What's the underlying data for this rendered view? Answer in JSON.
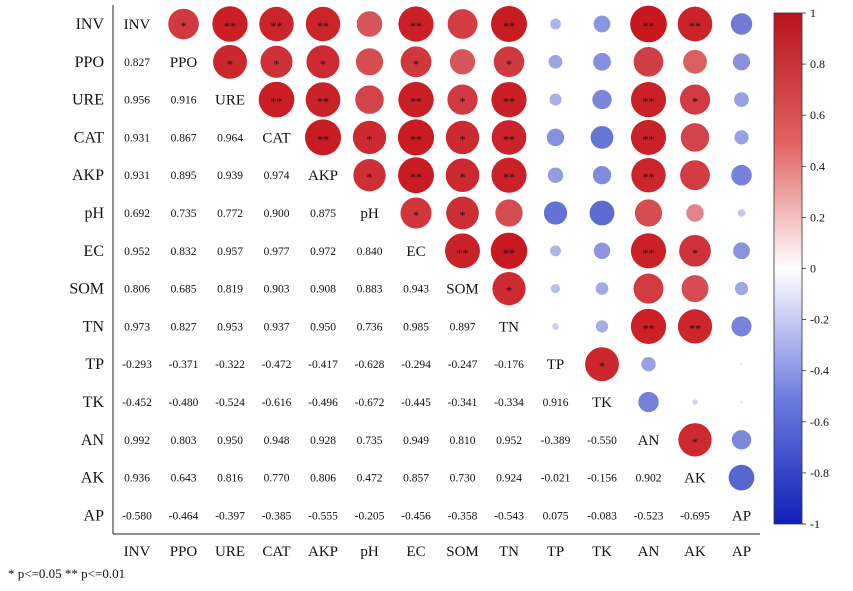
{
  "chart_data": {
    "type": "heatmap",
    "variables": [
      "INV",
      "PPO",
      "URE",
      "CAT",
      "AKP",
      "pH",
      "EC",
      "SOM",
      "TN",
      "TP",
      "TK",
      "AN",
      "AK",
      "AP"
    ],
    "lower_triangle_values": [
      [],
      [
        "0.827"
      ],
      [
        "0.956",
        "0.916"
      ],
      [
        "0.931",
        "0.867",
        "0.964"
      ],
      [
        "0.931",
        "0.895",
        "0.939",
        "0.974"
      ],
      [
        "0.692",
        "0.735",
        "0.772",
        "0.900",
        "0.875"
      ],
      [
        "0.952",
        "0.832",
        "0.957",
        "0.977",
        "0.972",
        "0.840"
      ],
      [
        "0.806",
        "0.685",
        "0.819",
        "0.903",
        "0.908",
        "0.883",
        "0.943"
      ],
      [
        "0.973",
        "0.827",
        "0.953",
        "0.937",
        "0.950",
        "0.736",
        "0.985",
        "0.897"
      ],
      [
        "-0.293",
        "-0.371",
        "-0.322",
        "-0.472",
        "-0.417",
        "-0.628",
        "-0.294",
        "-0.247",
        "-0.176"
      ],
      [
        "-0.452",
        "-0.480",
        "-0.524",
        "-0.616",
        "-0.496",
        "-0.672",
        "-0.445",
        "-0.341",
        "-0.334",
        "0.916"
      ],
      [
        "0.992",
        "0.803",
        "0.950",
        "0.948",
        "0.928",
        "0.735",
        "0.949",
        "0.810",
        "0.952",
        "-0.389",
        "-0.550"
      ],
      [
        "0.936",
        "0.643",
        "0.816",
        "0.770",
        "0.806",
        "0.472",
        "0.857",
        "0.730",
        "0.924",
        "-0.021",
        "-0.156",
        "0.902"
      ],
      [
        "-0.580",
        "-0.464",
        "-0.397",
        "-0.385",
        "-0.555",
        "-0.205",
        "-0.456",
        "-0.358",
        "-0.543",
        "0.075",
        "-0.083",
        "-0.523",
        "-0.695"
      ]
    ],
    "significance": [
      [
        "",
        "*",
        "**",
        "**",
        "**",
        "",
        "**",
        "",
        "**",
        "",
        "",
        "**",
        "**",
        ""
      ],
      [
        "",
        "",
        "*",
        "*",
        "*",
        "",
        "*",
        "",
        "*",
        "",
        "",
        "",
        "",
        ""
      ],
      [
        "",
        "",
        "",
        "**",
        "**",
        "",
        "**",
        "*",
        "**",
        "",
        "",
        "**",
        "*",
        ""
      ],
      [
        "",
        "",
        "",
        "",
        "**",
        "*",
        "**",
        "*",
        "**",
        "",
        "",
        "**",
        "",
        ""
      ],
      [
        "",
        "",
        "",
        "",
        "",
        "*",
        "**",
        "*",
        "**",
        "",
        "",
        "**",
        "",
        ""
      ],
      [
        "",
        "",
        "",
        "",
        "",
        "",
        "*",
        "*",
        "",
        "",
        "",
        "",
        "",
        ""
      ],
      [
        "",
        "",
        "",
        "",
        "",
        "",
        "",
        "**",
        "**",
        "",
        "",
        "**",
        "*",
        ""
      ],
      [
        "",
        "",
        "",
        "",
        "",
        "",
        "",
        "",
        "*",
        "",
        "",
        "",
        "",
        ""
      ],
      [
        "",
        "",
        "",
        "",
        "",
        "",
        "",
        "",
        "",
        "",
        "",
        "**",
        "**",
        ""
      ],
      [
        "",
        "",
        "",
        "",
        "",
        "",
        "",
        "",
        "",
        "",
        "*",
        "",
        "",
        ""
      ],
      [
        "",
        "",
        "",
        "",
        "",
        "",
        "",
        "",
        "",
        "",
        "",
        "",
        "",
        ""
      ],
      [
        "",
        "",
        "",
        "",
        "",
        "",
        "",
        "",
        "",
        "",
        "",
        "",
        "*",
        ""
      ],
      [
        "",
        "",
        "",
        "",
        "",
        "",
        "",
        "",
        "",
        "",
        "",
        "",
        "",
        ""
      ],
      [
        "",
        "",
        "",
        "",
        "",
        "",
        "",
        "",
        "",
        "",
        "",
        "",
        "",
        ""
      ]
    ],
    "colorbar": {
      "ticks": [
        "1",
        "0.8",
        "0.6",
        "0.4",
        "0.2",
        "0",
        "-0.2",
        "-0.4",
        "-0.6",
        "-0.8",
        "-1"
      ],
      "range": [
        -1,
        1
      ],
      "color_high": "#c8161d",
      "color_mid": "#ffffff",
      "color_low": "#1a2ec0"
    },
    "grid": false,
    "legend": "right",
    "footnote": "* p<=0.05  ** p<=0.01"
  }
}
